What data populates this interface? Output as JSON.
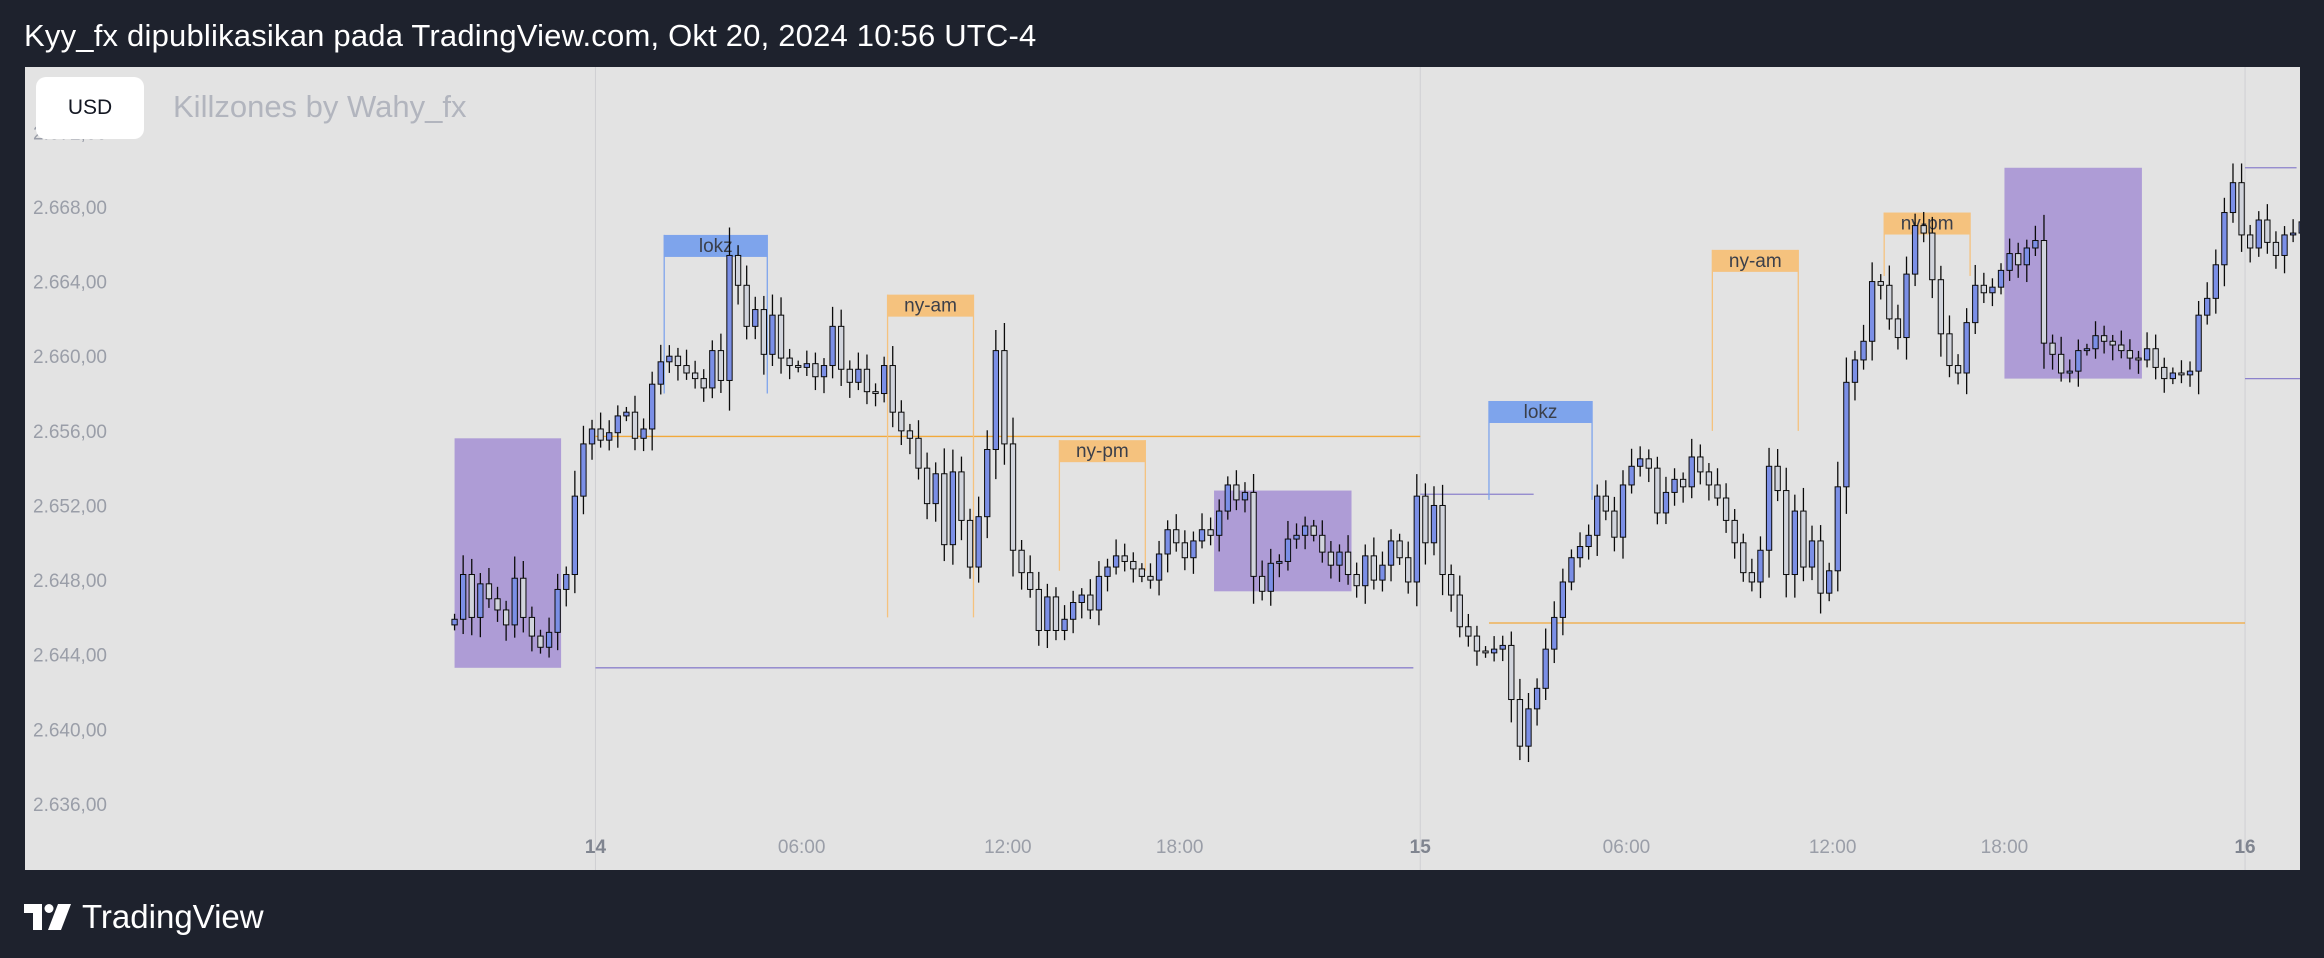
{
  "header": {
    "title": "Kyy_fx dipublikasikan pada TradingView.com, Okt 20, 2024 10:56 UTC-4"
  },
  "currency": "USD",
  "indicator_title": "Killzones by Wahy_fx",
  "footer": {
    "brand": "TradingView",
    "logo_icon": "tradingview-logo-icon"
  },
  "colors": {
    "background": "#1e222d",
    "plot": "#e3e3e3",
    "up": "#7b8fe6",
    "down": "#d1d4dc",
    "box": "#a48fd4",
    "lokz": "#7ea4ec",
    "ny": "#f5c27e",
    "level_orange": "#f2a93b",
    "level_purple": "#8c82cc"
  },
  "chart_data": {
    "type": "candlestick",
    "symbol_currency": "USD",
    "ylim": [
      2634.5,
      2675.5
    ],
    "y_ticks": [
      "2.672,00",
      "2.668,00",
      "2.664,00",
      "2.660,00",
      "2.656,00",
      "2.652,00",
      "2.648,00",
      "2.644,00",
      "2.640,00",
      "2.636,00"
    ],
    "y_tick_values": [
      2672,
      2668,
      2664,
      2660,
      2656,
      2652,
      2648,
      2644,
      2640,
      2636
    ],
    "x_range_hours": [
      -16.6,
      49.6
    ],
    "x_ticks": [
      {
        "label": "14",
        "t": 0,
        "bold": true
      },
      {
        "label": "06:00",
        "t": 6
      },
      {
        "label": "12:00",
        "t": 12
      },
      {
        "label": "18:00",
        "t": 17
      },
      {
        "label": "15",
        "t": 24,
        "bold": true
      },
      {
        "label": "06:00",
        "t": 30
      },
      {
        "label": "12:00",
        "t": 36
      },
      {
        "label": "18:00",
        "t": 41
      },
      {
        "label": "16",
        "t": 48,
        "bold": true
      }
    ],
    "session_labels": [
      {
        "label": "lokz",
        "kind": "lokz",
        "t0": 2,
        "t1": 5,
        "top": 2666.5,
        "bottom": 2658.0
      },
      {
        "label": "ny-am",
        "kind": "ny",
        "t0": 8.5,
        "t1": 11,
        "top": 2663.3,
        "bottom": 2646.0
      },
      {
        "label": "ny-pm",
        "kind": "ny",
        "t0": 13.5,
        "t1": 16,
        "top": 2655.5,
        "bottom": 2648.5
      },
      {
        "label": "lokz",
        "kind": "lokz",
        "t0": 26,
        "t1": 29,
        "top": 2657.6,
        "bottom": 2652.3
      },
      {
        "label": "ny-am",
        "kind": "ny",
        "t0": 32.5,
        "t1": 35,
        "top": 2665.7,
        "bottom": 2656.0
      },
      {
        "label": "ny-pm",
        "kind": "ny",
        "t0": 37.5,
        "t1": 40,
        "top": 2667.7,
        "bottom": 2664.3
      }
    ],
    "range_boxes": [
      {
        "t0": -4.1,
        "t1": -1.0,
        "top": 2655.6,
        "bottom": 2643.3
      },
      {
        "t0": 18.0,
        "t1": 22.0,
        "top": 2652.8,
        "bottom": 2647.4
      },
      {
        "t0": 41.0,
        "t1": 45.0,
        "top": 2670.1,
        "bottom": 2658.8
      }
    ],
    "levels": [
      {
        "price": 2655.7,
        "t0": 0,
        "t1": 24,
        "color": "orange"
      },
      {
        "price": 2643.3,
        "t0": 0,
        "t1": 23.8,
        "color": "purple"
      },
      {
        "price": 2652.6,
        "t0": 24,
        "t1": 27.3,
        "color": "purple"
      },
      {
        "price": 2645.7,
        "t0": 26,
        "t1": 48,
        "color": "orange"
      },
      {
        "price": 2670.1,
        "t0": 48,
        "t1": 49.5,
        "color": "purple"
      },
      {
        "price": 2658.8,
        "t0": 48,
        "t1": 52,
        "color": "purple"
      },
      {
        "price": 2667.5,
        "t0": 49.6,
        "t1": 52,
        "color": "orange"
      }
    ],
    "candles_start_hour": -4.1,
    "candle_interval_hours": 0.25,
    "closes": [
      2645.9,
      2648.3,
      2646.0,
      2647.8,
      2647.0,
      2646.4,
      2645.6,
      2648.1,
      2646.0,
      2645.0,
      2644.4,
      2645.2,
      2647.5,
      2648.3,
      2652.5,
      2655.3,
      2656.1,
      2655.5,
      2655.9,
      2656.8,
      2657.0,
      2655.6,
      2656.1,
      2658.5,
      2659.7,
      2660.0,
      2659.5,
      2659.1,
      2658.8,
      2658.3,
      2660.3,
      2658.7,
      2665.4,
      2663.8,
      2661.6,
      2662.5,
      2660.1,
      2662.2,
      2659.9,
      2659.5,
      2659.4,
      2659.6,
      2658.9,
      2659.5,
      2661.6,
      2659.3,
      2658.6,
      2659.3,
      2658.1,
      2658.0,
      2659.5,
      2657.0,
      2656.0,
      2655.6,
      2654.0,
      2652.1,
      2653.7,
      2649.9,
      2653.8,
      2651.2,
      2648.7,
      2651.4,
      2655.0,
      2660.3,
      2655.3,
      2649.6,
      2648.4,
      2647.5,
      2645.3,
      2647.1,
      2645.3,
      2645.9,
      2646.8,
      2647.2,
      2646.4,
      2648.2,
      2648.7,
      2649.3,
      2649.0,
      2648.6,
      2648.2,
      2648.0,
      2649.4,
      2650.7,
      2650.0,
      2649.2,
      2650.1,
      2650.7,
      2650.4,
      2651.7,
      2653.1,
      2652.3,
      2652.7,
      2648.2,
      2647.4,
      2648.9,
      2649.0,
      2650.2,
      2650.4,
      2650.9,
      2650.4,
      2649.5,
      2648.8,
      2649.5,
      2648.3,
      2647.7,
      2649.3,
      2648.0,
      2648.8,
      2650.1,
      2649.2,
      2647.9,
      2652.5,
      2650.0,
      2652.0,
      2648.3,
      2647.2,
      2645.5,
      2645.0,
      2644.2,
      2644.1,
      2644.3,
      2644.5,
      2641.6,
      2639.1,
      2641.1,
      2642.2,
      2644.3,
      2646.0,
      2647.9,
      2649.2,
      2649.8,
      2650.4,
      2652.5,
      2651.7,
      2650.3,
      2653.1,
      2654.1,
      2654.5,
      2654.0,
      2651.6,
      2652.7,
      2653.4,
      2653.0,
      2654.6,
      2653.8,
      2653.1,
      2652.4,
      2651.2,
      2650.0,
      2648.4,
      2647.9,
      2649.6,
      2654.1,
      2652.8,
      2648.3,
      2651.7,
      2648.7,
      2650.1,
      2647.3,
      2648.5,
      2653.0,
      2658.6,
      2659.8,
      2660.8,
      2664.0,
      2663.8,
      2662.0,
      2661.0,
      2664.4,
      2667.0,
      2666.6,
      2664.1,
      2661.2,
      2659.5,
      2659.1,
      2661.8,
      2663.8,
      2663.4,
      2663.7,
      2664.6,
      2665.5,
      2664.9,
      2665.8,
      2666.2,
      2660.7,
      2660.1,
      2659.1,
      2659.2,
      2660.3,
      2660.4,
      2661.1,
      2660.8,
      2660.6,
      2660.3,
      2659.9,
      2659.8,
      2660.4,
      2659.4,
      2658.8,
      2659.1,
      2659.0,
      2659.2,
      2662.2,
      2663.1,
      2664.9,
      2667.7,
      2669.3,
      2666.5,
      2665.8,
      2667.3,
      2666.1,
      2665.4,
      2666.5,
      2666.6,
      2667.2,
      2666.6,
      2666.7,
      2666.6,
      2666.9,
      2668.2,
      2669.7,
      2673.4,
      2674.7,
      2672.8,
      2674.7,
      2674.1,
      2673.1,
      2672.5,
      2673.4,
      2673.7
    ]
  }
}
